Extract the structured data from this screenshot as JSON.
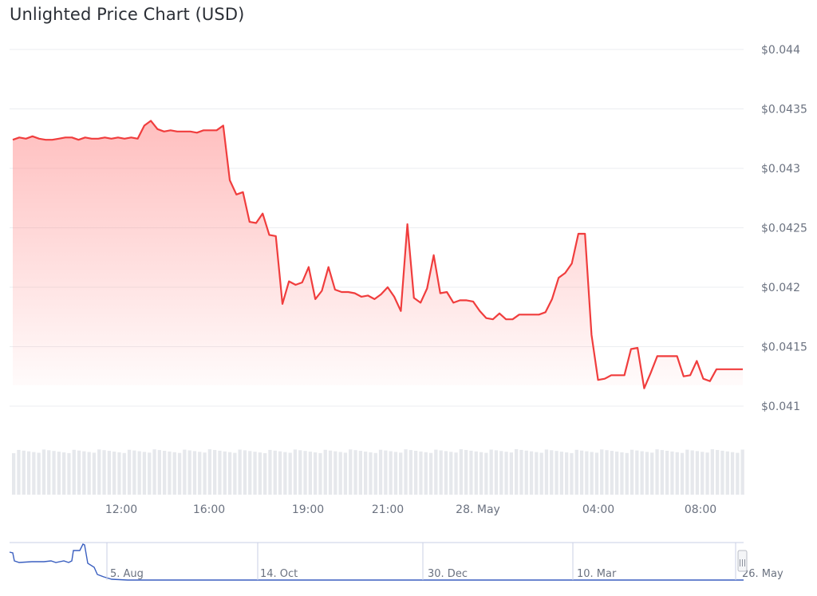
{
  "title": "Unlighted Price Chart (USD)",
  "colors": {
    "price_line": "#f03d3d",
    "area_fill": "#ff8a8a",
    "grid": "#ebedf0",
    "volume_bar": "#e6e8ec",
    "navigator_line": "#3a5fc0",
    "navigator_border": "#c9cfe6"
  },
  "chart_data": {
    "type": "area",
    "title": "Unlighted Price Chart (USD)",
    "xlabel": "",
    "ylabel": "",
    "ylim": [
      0.041,
      0.0444
    ],
    "x_ticks": [
      "12:00",
      "16:00",
      "19:00",
      "21:00",
      "28. May",
      "04:00",
      "08:00"
    ],
    "y_ticks": [
      "$0.044",
      "$0.0435",
      "$0.043",
      "$0.0425",
      "$0.042",
      "$0.0415",
      "$0.041"
    ],
    "grid": true,
    "legend": "none",
    "series": [
      {
        "values": [
          0.04324,
          0.04326,
          0.04325,
          0.04327,
          0.04325,
          0.04324,
          0.04324,
          0.04325,
          0.04326,
          0.04326,
          0.04324,
          0.04326,
          0.04325,
          0.04325,
          0.04326,
          0.04325,
          0.04326,
          0.04325,
          0.04326,
          0.04325,
          0.04336,
          0.0434,
          0.04333,
          0.04331,
          0.04332,
          0.04331,
          0.04331,
          0.04331,
          0.0433,
          0.04332,
          0.04332,
          0.04332,
          0.04336,
          0.0429,
          0.04278,
          0.0428,
          0.04255,
          0.04254,
          0.04262,
          0.04244,
          0.04243,
          0.04186,
          0.04205,
          0.04202,
          0.04204,
          0.04217,
          0.0419,
          0.04197,
          0.04217,
          0.04198,
          0.04196,
          0.04196,
          0.04195,
          0.04192,
          0.04193,
          0.0419,
          0.04194,
          0.042,
          0.04192,
          0.0418,
          0.04253,
          0.04191,
          0.04187,
          0.04199,
          0.04227,
          0.04195,
          0.04196,
          0.04187,
          0.04189,
          0.04189,
          0.04188,
          0.0418,
          0.04174,
          0.04173,
          0.04178,
          0.04173,
          0.04173,
          0.04177,
          0.04177,
          0.04177,
          0.04177,
          0.04179,
          0.0419,
          0.04208,
          0.04212,
          0.0422,
          0.04245,
          0.04245,
          0.0416,
          0.04122,
          0.04123,
          0.04126,
          0.04126,
          0.04126,
          0.04148,
          0.04149,
          0.04115,
          0.04128,
          0.04142,
          0.04142,
          0.04142,
          0.04142,
          0.04125,
          0.04126,
          0.04138,
          0.04123,
          0.04121,
          0.04131,
          0.04131,
          0.04131,
          0.04131,
          0.04131
        ]
      }
    ]
  },
  "navigator": {
    "labels": [
      "5. Aug",
      "14. Oct",
      "30. Dec",
      "10. Mar",
      "26. May"
    ],
    "handle_glyph": "|||"
  }
}
